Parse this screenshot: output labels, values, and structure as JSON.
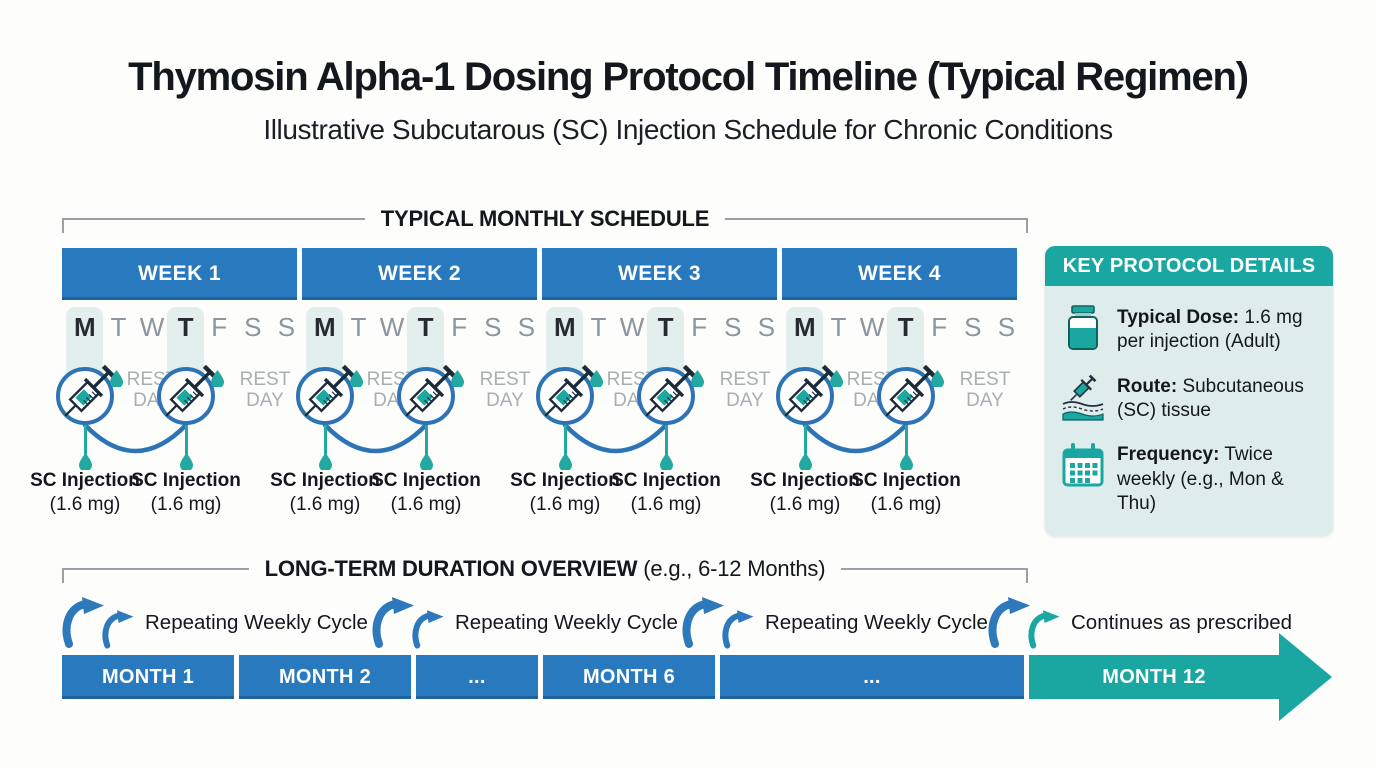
{
  "title": "Thymosin Alpha-1 Dosing Protocol Timeline (Typical Regimen)",
  "subtitle": "Illustrative Subcutarous (SC) Injection Schedule for Chronic Conditions",
  "monthly_schedule": {
    "section_title": "TYPICAL MONTHLY SCHEDULE",
    "weeks": [
      {
        "label": "WEEK 1"
      },
      {
        "label": "WEEK 2"
      },
      {
        "label": "WEEK 3"
      },
      {
        "label": "WEEK 4"
      }
    ],
    "days": [
      "M",
      "T",
      "W",
      "T",
      "F",
      "S",
      "S"
    ],
    "injection_day_indexes": [
      0,
      3
    ],
    "rest_day": "REST\nDAY",
    "injection_line1": "SC Injection",
    "injection_line2": "(1.6 mg)"
  },
  "key_protocol": {
    "title": "KEY PROTOCOL DETAILS",
    "items": [
      {
        "icon": "vial-icon",
        "label": "Typical Dose:",
        "text": "1.6 mg\nper injection (Adult)"
      },
      {
        "icon": "sc-injection-icon",
        "label": "Route:",
        "text": "Subcutaneous\n(SC) tissue"
      },
      {
        "icon": "calendar-icon",
        "label": "Frequency:",
        "text": "Twice\nweekly (e.g., Mon & Thu)"
      }
    ]
  },
  "long_term": {
    "section_title_bold": "LONG-TERM DURATION OVERVIEW",
    "section_title_note": "(e.g., 6-12 Months)",
    "cycles": [
      {
        "label": "Repeating Weekly Cycle"
      },
      {
        "label": "Repeating Weekly Cycle"
      },
      {
        "label": "Repeating Weekly Cycle"
      },
      {
        "label": "Continues as prescribed",
        "accent": true
      }
    ],
    "months": [
      {
        "label": "MONTH 1"
      },
      {
        "label": "MONTH 2"
      },
      {
        "label": "..."
      },
      {
        "label": "MONTH 6"
      },
      {
        "label": "..."
      },
      {
        "label": "MONTH 12",
        "accent": true
      }
    ]
  },
  "colors": {
    "bar_blue": "#2879BE",
    "accent_teal": "#1BA7A1",
    "circle_blue": "#2E74B5",
    "highlight_mint": "#E2EFED",
    "panel_mint": "#DEEDEB",
    "bracket_gray": "#9AA0A6",
    "rest_gray": "#A9AEB3",
    "text_dark": "#14181C"
  }
}
